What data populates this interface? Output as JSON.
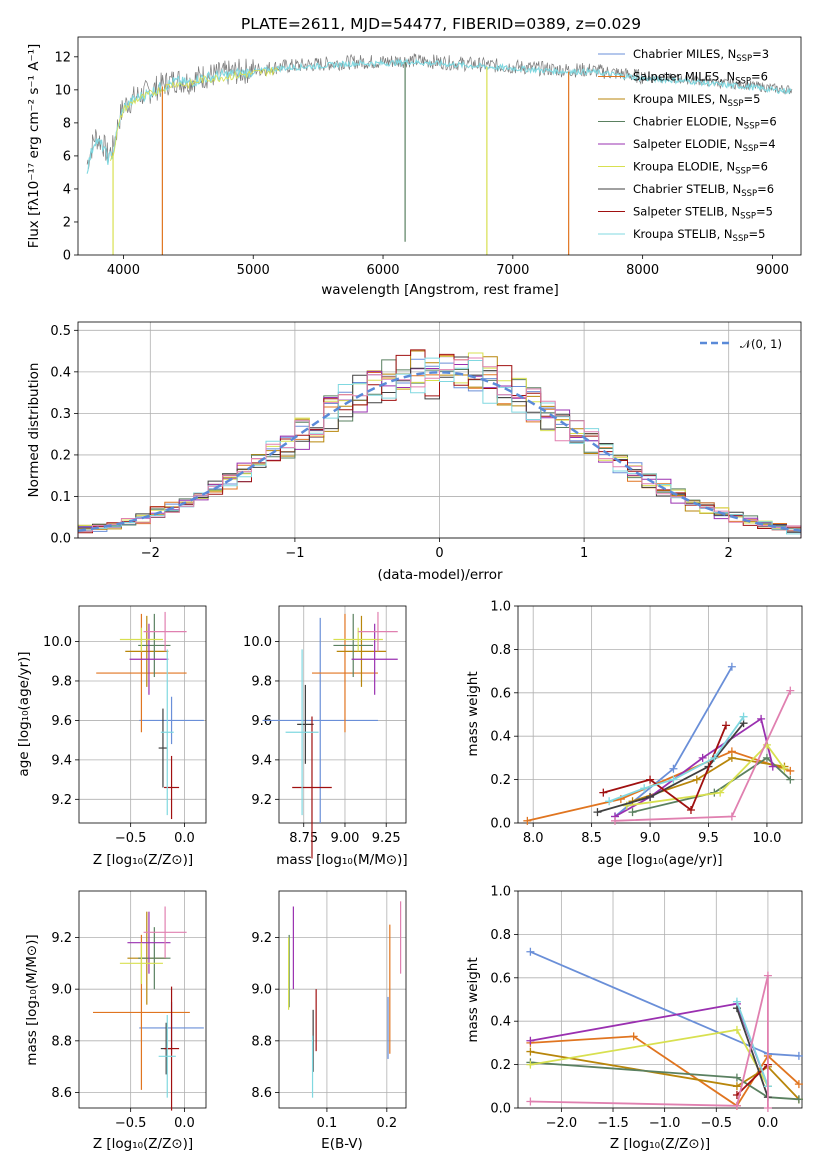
{
  "figure": {
    "title": "PLATE=2611, MJD=54477, FIBERID=0389, z=0.029",
    "colors": [
      "#6a8fd8",
      "#e07520",
      "#b8860b",
      "#5a8060",
      "#9a30b0",
      "#d8e050",
      "#404040",
      "#a01010",
      "#80d8e0",
      "#e080b0"
    ]
  },
  "legend_entries": [
    {
      "text": "Chabrier MILES, N",
      "sub": "SSP",
      "suffix": "=3",
      "color": "#6a8fd8"
    },
    {
      "text": "Salpeter MILES, N",
      "sub": "SSP",
      "suffix": "=6",
      "color": "#e07520"
    },
    {
      "text": "Kroupa MILES, N",
      "sub": "SSP",
      "suffix": "=5",
      "color": "#b8860b"
    },
    {
      "text": "Chabrier ELODIE, N",
      "sub": "SSP",
      "suffix": "=6",
      "color": "#5a8060"
    },
    {
      "text": "Salpeter ELODIE, N",
      "sub": "SSP",
      "suffix": "=4",
      "color": "#9a30b0"
    },
    {
      "text": "Kroupa ELODIE, N",
      "sub": "SSP",
      "suffix": "=6",
      "color": "#d8e050"
    },
    {
      "text": "Chabrier STELIB, N",
      "sub": "SSP",
      "suffix": "=6",
      "color": "#404040"
    },
    {
      "text": "Salpeter STELIB, N",
      "sub": "SSP",
      "suffix": "=5",
      "color": "#a01010"
    },
    {
      "text": "Kroupa STELIB, N",
      "sub": "SSP",
      "suffix": "=5",
      "color": "#80d8e0"
    }
  ],
  "chart_data": [
    {
      "id": "spectrum",
      "type": "line",
      "title": "PLATE=2611, MJD=54477, FIBERID=0389, z=0.029",
      "xlabel": "wavelength [Angstrom, rest frame]",
      "ylabel": "Flux [fλ10⁻¹⁷ erg cm⁻² s⁻¹ A⁻¹]",
      "xlim": [
        3650,
        9220
      ],
      "ylim": [
        0,
        13.2
      ],
      "xticks": [
        4000,
        5000,
        6000,
        7000,
        8000,
        9000
      ],
      "yticks": [
        0,
        2,
        4,
        6,
        8,
        10,
        12
      ],
      "observed": {
        "x": [
          3720,
          3780,
          3840,
          3880,
          3920,
          3960,
          4000,
          4100,
          4200,
          4300,
          4400,
          4500,
          4600,
          4800,
          5000,
          5200,
          5400,
          5600,
          5800,
          6000,
          6200,
          6400,
          6600,
          6800,
          7000,
          7200,
          7400,
          7600,
          7800,
          8000,
          8200,
          8400,
          8600,
          8800,
          9000,
          9150
        ],
        "y": [
          5.5,
          7.2,
          6.8,
          6.0,
          6.5,
          8.0,
          9.0,
          9.6,
          9.9,
          10.3,
          10.6,
          10.5,
          10.8,
          11.0,
          11.2,
          11.4,
          11.5,
          11.6,
          11.7,
          11.7,
          11.8,
          11.7,
          11.6,
          11.5,
          11.4,
          11.3,
          11.2,
          11.2,
          11.0,
          10.8,
          10.7,
          10.6,
          10.4,
          10.3,
          10.1,
          10.0
        ]
      },
      "model": {
        "x": [
          3720,
          3780,
          3840,
          3880,
          3920,
          3960,
          4000,
          4100,
          4200,
          4300,
          4400,
          4500,
          4600,
          4800,
          5000,
          5200,
          5400,
          5600,
          5800,
          6000,
          6200,
          6400,
          6600,
          6800,
          7000,
          7200,
          7400,
          7600,
          7800,
          8000,
          8200,
          8400,
          8600,
          8800,
          9000,
          9150
        ],
        "y": [
          5.2,
          7.0,
          6.6,
          5.8,
          6.2,
          7.8,
          8.9,
          9.5,
          9.8,
          10.2,
          10.5,
          10.4,
          10.7,
          10.9,
          11.1,
          11.3,
          11.4,
          11.5,
          11.6,
          11.6,
          11.7,
          11.6,
          11.5,
          11.4,
          11.3,
          11.2,
          11.1,
          11.1,
          10.9,
          10.7,
          10.6,
          10.5,
          10.3,
          10.2,
          10.0,
          9.9
        ]
      },
      "dips": [
        {
          "x": 3920,
          "y": 0.0,
          "color": "#d8e050"
        },
        {
          "x": 4300,
          "y": 0.0,
          "color": "#e07520"
        },
        {
          "x": 6170,
          "y": 0.8,
          "color": "#5a8060"
        },
        {
          "x": 6800,
          "y": 0.0,
          "color": "#d8e050"
        },
        {
          "x": 7430,
          "y": 0.0,
          "color": "#e07520"
        }
      ]
    },
    {
      "id": "residuals",
      "type": "step",
      "xlabel": "(data-model)/error",
      "ylabel": "Normed distribution",
      "xlim": [
        -2.5,
        2.5
      ],
      "ylim": [
        0,
        0.52
      ],
      "xticks": [
        -2,
        -1,
        0,
        1,
        2
      ],
      "xticklabels": [
        "−2",
        "−1",
        "0",
        "1",
        "2"
      ],
      "yticks": [
        0.0,
        0.1,
        0.2,
        0.3,
        0.4,
        0.5
      ],
      "yticklabels": [
        "0.0",
        "0.1",
        "0.2",
        "0.3",
        "0.4",
        "0.5"
      ],
      "reference": {
        "label": "𝒩(0, 1)",
        "mean": 0,
        "sigma": 1,
        "color": "#5a8ad8"
      },
      "histogram": {
        "bin_width": 0.1,
        "start": -2.5,
        "end": 2.5
      }
    },
    {
      "id": "age-vs-Z",
      "type": "scatter",
      "xlabel": "Z [log₁₀(Z/Z⊙)]",
      "ylabel": "age  [log₁₀(age/yr)]",
      "xlim": [
        -0.98,
        0.2
      ],
      "ylim": [
        9.08,
        10.18
      ],
      "xticks": [
        -0.5,
        0.0
      ],
      "xticklabels": [
        "−0.5",
        "0.0"
      ],
      "yticks": [
        9.2,
        9.4,
        9.6,
        9.8,
        10.0
      ],
      "yticklabels": [
        "9.2",
        "9.4",
        "9.6",
        "9.8",
        "10.0"
      ],
      "points": [
        {
          "x": -0.12,
          "y": 9.6,
          "xerr": 0.3,
          "yerr": 0.12,
          "color": "#6a8fd8"
        },
        {
          "x": -0.4,
          "y": 9.84,
          "xerr": 0.42,
          "yerr": 0.3,
          "color": "#e07520"
        },
        {
          "x": -0.35,
          "y": 9.95,
          "xerr": 0.2,
          "yerr": 0.18,
          "color": "#b8860b"
        },
        {
          "x": -0.28,
          "y": 9.98,
          "xerr": 0.15,
          "yerr": 0.16,
          "color": "#5a8060"
        },
        {
          "x": -0.33,
          "y": 9.91,
          "xerr": 0.18,
          "yerr": 0.18,
          "color": "#9a30b0"
        },
        {
          "x": -0.4,
          "y": 10.01,
          "xerr": 0.2,
          "yerr": 0.06,
          "color": "#d8e050"
        },
        {
          "x": -0.2,
          "y": 9.46,
          "xerr": 0.04,
          "yerr": 0.2,
          "color": "#404040"
        },
        {
          "x": -0.12,
          "y": 9.26,
          "xerr": 0.07,
          "yerr": 0.16,
          "color": "#a01010"
        },
        {
          "x": -0.16,
          "y": 9.54,
          "xerr": 0.06,
          "yerr": 0.42,
          "color": "#80d8e0"
        },
        {
          "x": -0.18,
          "y": 10.05,
          "xerr": 0.2,
          "yerr": 0.1,
          "color": "#e080b0"
        }
      ]
    },
    {
      "id": "age-vs-mass",
      "type": "scatter",
      "xlabel": "mass [log₁₀(M/M⊙)]",
      "ylabel": "",
      "xlim": [
        8.6,
        9.37
      ],
      "ylim": [
        9.08,
        10.18
      ],
      "xticks": [
        8.75,
        9.0,
        9.25
      ],
      "xticklabels": [
        "8.75",
        "9.00",
        "9.25"
      ],
      "yticks": [
        9.2,
        9.4,
        9.6,
        9.8,
        10.0
      ],
      "yticklabels": [
        "9.2",
        "9.4",
        "9.6",
        "9.8",
        "10.0"
      ],
      "points": [
        {
          "x": 8.85,
          "y": 9.6,
          "xerr": 0.35,
          "yerr": 0.52,
          "color": "#6a8fd8"
        },
        {
          "x": 9.0,
          "y": 9.84,
          "xerr": 0.2,
          "yerr": 0.3,
          "color": "#e07520"
        },
        {
          "x": 9.1,
          "y": 9.95,
          "xerr": 0.15,
          "yerr": 0.18,
          "color": "#b8860b"
        },
        {
          "x": 9.05,
          "y": 9.98,
          "xerr": 0.12,
          "yerr": 0.16,
          "color": "#5a8060"
        },
        {
          "x": 9.18,
          "y": 9.91,
          "xerr": 0.14,
          "yerr": 0.18,
          "color": "#9a30b0"
        },
        {
          "x": 9.08,
          "y": 10.01,
          "xerr": 0.15,
          "yerr": 0.06,
          "color": "#d8e050"
        },
        {
          "x": 8.76,
          "y": 9.58,
          "xerr": 0.05,
          "yerr": 0.2,
          "color": "#404040"
        },
        {
          "x": 8.8,
          "y": 9.26,
          "xerr": 0.12,
          "yerr": 0.36,
          "color": "#a01010"
        },
        {
          "x": 8.74,
          "y": 9.54,
          "xerr": 0.1,
          "yerr": 0.42,
          "color": "#80d8e0"
        },
        {
          "x": 9.2,
          "y": 10.05,
          "xerr": 0.12,
          "yerr": 0.1,
          "color": "#e080b0"
        }
      ]
    },
    {
      "id": "massweight-vs-age",
      "type": "line",
      "xlabel": "age  [log₁₀(age/yr)]",
      "ylabel": "mass weight",
      "xlim": [
        7.87,
        10.3
      ],
      "ylim": [
        0.0,
        1.0
      ],
      "xticks": [
        8.0,
        8.5,
        9.0,
        9.5,
        10.0
      ],
      "xticklabels": [
        "8.0",
        "8.5",
        "9.0",
        "9.5",
        "10.0"
      ],
      "yticks": [
        0.0,
        0.2,
        0.4,
        0.6,
        0.8,
        1.0
      ],
      "yticklabels": [
        "0.0",
        "0.2",
        "0.4",
        "0.6",
        "0.8",
        "1.0"
      ],
      "series": [
        {
          "color": "#6a8fd8",
          "x": [
            8.7,
            9.2,
            9.7
          ],
          "y": [
            0.03,
            0.25,
            0.72
          ]
        },
        {
          "color": "#e07520",
          "x": [
            7.95,
            8.75,
            9.7,
            10.2
          ],
          "y": [
            0.01,
            0.11,
            0.33,
            0.24
          ]
        },
        {
          "color": "#b8860b",
          "x": [
            8.85,
            9.4,
            9.7,
            10.15
          ],
          "y": [
            0.1,
            0.2,
            0.3,
            0.26
          ]
        },
        {
          "color": "#5a8060",
          "x": [
            8.85,
            9.55,
            10.0,
            10.2
          ],
          "y": [
            0.05,
            0.14,
            0.3,
            0.2
          ]
        },
        {
          "color": "#9a30b0",
          "x": [
            8.7,
            9.0,
            9.45,
            9.95,
            10.05
          ],
          "y": [
            0.03,
            0.12,
            0.3,
            0.48,
            0.26
          ]
        },
        {
          "color": "#d8e050",
          "x": [
            8.8,
            9.6,
            10.0,
            10.15
          ],
          "y": [
            0.08,
            0.14,
            0.36,
            0.25
          ]
        },
        {
          "color": "#404040",
          "x": [
            8.55,
            9.0,
            9.5,
            9.8
          ],
          "y": [
            0.05,
            0.12,
            0.26,
            0.46
          ]
        },
        {
          "color": "#a01010",
          "x": [
            8.6,
            9.0,
            9.35,
            9.65
          ],
          "y": [
            0.14,
            0.2,
            0.06,
            0.45
          ]
        },
        {
          "color": "#80d8e0",
          "x": [
            8.65,
            8.95,
            9.2,
            9.55,
            9.8
          ],
          "y": [
            0.1,
            0.16,
            0.2,
            0.3,
            0.49
          ]
        },
        {
          "color": "#e080b0",
          "x": [
            8.7,
            9.7,
            10.2
          ],
          "y": [
            0.01,
            0.03,
            0.61
          ]
        }
      ]
    },
    {
      "id": "mass-vs-Z",
      "type": "scatter",
      "xlabel": "Z [log₁₀(Z/Z⊙)]",
      "ylabel": "mass [log₁₀(M/M⊙)]",
      "xlim": [
        -0.98,
        0.2
      ],
      "ylim": [
        8.54,
        9.38
      ],
      "xticks": [
        -0.5,
        0.0
      ],
      "xticklabels": [
        "−0.5",
        "0.0"
      ],
      "yticks": [
        8.6,
        8.8,
        9.0,
        9.2
      ],
      "yticklabels": [
        "8.6",
        "8.8",
        "9.0",
        "9.2"
      ],
      "points": [
        {
          "x": -0.12,
          "y": 8.85,
          "xerr": 0.3,
          "yerr": 0.1,
          "color": "#6a8fd8"
        },
        {
          "x": -0.4,
          "y": 8.91,
          "xerr": 0.45,
          "yerr": 0.3,
          "color": "#e07520"
        },
        {
          "x": -0.35,
          "y": 9.12,
          "xerr": 0.18,
          "yerr": 0.18,
          "color": "#b8860b"
        },
        {
          "x": -0.28,
          "y": 9.12,
          "xerr": 0.15,
          "yerr": 0.12,
          "color": "#5a8060"
        },
        {
          "x": -0.33,
          "y": 9.18,
          "xerr": 0.2,
          "yerr": 0.12,
          "color": "#9a30b0"
        },
        {
          "x": -0.4,
          "y": 9.1,
          "xerr": 0.2,
          "yerr": 0.08,
          "color": "#d8e050"
        },
        {
          "x": -0.17,
          "y": 8.77,
          "xerr": 0.05,
          "yerr": 0.1,
          "color": "#404040"
        },
        {
          "x": -0.12,
          "y": 8.77,
          "xerr": 0.07,
          "yerr": 0.24,
          "color": "#a01010"
        },
        {
          "x": -0.16,
          "y": 8.74,
          "xerr": 0.08,
          "yerr": 0.16,
          "color": "#80d8e0"
        },
        {
          "x": -0.18,
          "y": 9.22,
          "xerr": 0.2,
          "yerr": 0.1,
          "color": "#e080b0"
        }
      ]
    },
    {
      "id": "mass-vs-EBV",
      "type": "scatter",
      "xlabel": "E(B-V)",
      "ylabel": "",
      "xlim": [
        0.02,
        0.232
      ],
      "ylim": [
        8.54,
        9.38
      ],
      "xticks": [
        0.1,
        0.2
      ],
      "xticklabels": [
        "0.1",
        "0.2"
      ],
      "yticks": [
        8.6,
        8.8,
        9.0,
        9.2
      ],
      "yticklabels": [
        "8.6",
        "8.8",
        "9.0",
        "9.2"
      ],
      "points": [
        {
          "x": 0.202,
          "y": 8.85,
          "xerr": 0.0,
          "yerr": 0.12,
          "color": "#6a8fd8"
        },
        {
          "x": 0.205,
          "y": 9.0,
          "xerr": 0.0,
          "yerr": 0.25,
          "color": "#e07520"
        },
        {
          "x": 0.037,
          "y": 9.07,
          "xerr": 0.0,
          "yerr": 0.14,
          "color": "#5a8060"
        },
        {
          "x": 0.044,
          "y": 9.16,
          "xerr": 0.0,
          "yerr": 0.16,
          "color": "#9a30b0"
        },
        {
          "x": 0.036,
          "y": 9.06,
          "xerr": 0.0,
          "yerr": 0.14,
          "color": "#d8e050"
        },
        {
          "x": 0.077,
          "y": 8.8,
          "xerr": 0.0,
          "yerr": 0.12,
          "color": "#404040"
        },
        {
          "x": 0.082,
          "y": 8.88,
          "xerr": 0.0,
          "yerr": 0.12,
          "color": "#a01010"
        },
        {
          "x": 0.076,
          "y": 8.7,
          "xerr": 0.0,
          "yerr": 0.12,
          "color": "#80d8e0"
        },
        {
          "x": 0.223,
          "y": 9.2,
          "xerr": 0.0,
          "yerr": 0.14,
          "color": "#e080b0"
        }
      ]
    },
    {
      "id": "massweight-vs-Z",
      "type": "line",
      "xlabel": "Z [log₁₀(Z/Z⊙)]",
      "ylabel": "mass weight",
      "xlim": [
        -2.42,
        0.33
      ],
      "ylim": [
        0.0,
        1.0
      ],
      "xticks": [
        -2.0,
        -1.5,
        -1.0,
        -0.5,
        0.0
      ],
      "xticklabels": [
        "−2.0",
        "−1.5",
        "−1.0",
        "−0.5",
        "0.0"
      ],
      "yticks": [
        0.0,
        0.2,
        0.4,
        0.6,
        0.8,
        1.0
      ],
      "yticklabels": [
        "0.0",
        "0.2",
        "0.4",
        "0.6",
        "0.8",
        "1.0"
      ],
      "series": [
        {
          "color": "#6a8fd8",
          "x": [
            -2.3,
            0.0,
            0.3
          ],
          "y": [
            0.72,
            0.25,
            0.24
          ]
        },
        {
          "color": "#e07520",
          "x": [
            -2.3,
            -1.3,
            -0.3,
            0.0,
            0.3
          ],
          "y": [
            0.3,
            0.33,
            0.01,
            0.24,
            0.11
          ]
        },
        {
          "color": "#b8860b",
          "x": [
            -2.3,
            -0.3,
            0.0,
            0.3
          ],
          "y": [
            0.26,
            0.1,
            0.19,
            0.04
          ]
        },
        {
          "color": "#5a8060",
          "x": [
            -2.3,
            -0.3,
            0.0,
            0.3
          ],
          "y": [
            0.21,
            0.14,
            0.05,
            0.04
          ]
        },
        {
          "color": "#9a30b0",
          "x": [
            -2.3,
            -0.3,
            0.0
          ],
          "y": [
            0.31,
            0.48,
            0.1
          ]
        },
        {
          "color": "#d8e050",
          "x": [
            -2.3,
            -0.3,
            0.0
          ],
          "y": [
            0.2,
            0.36,
            0.1
          ]
        },
        {
          "color": "#404040",
          "x": [
            -0.3,
            0.0
          ],
          "y": [
            0.46,
            0.05
          ]
        },
        {
          "color": "#a01010",
          "x": [
            -0.3,
            0.0
          ],
          "y": [
            0.06,
            0.2
          ]
        },
        {
          "color": "#80d8e0",
          "x": [
            -0.3,
            0.0
          ],
          "y": [
            0.49,
            0.1
          ]
        },
        {
          "color": "#e080b0",
          "x": [
            -2.3,
            -0.3,
            0.0,
            0.0
          ],
          "y": [
            0.03,
            0.01,
            0.61,
            0.0
          ]
        }
      ]
    }
  ]
}
